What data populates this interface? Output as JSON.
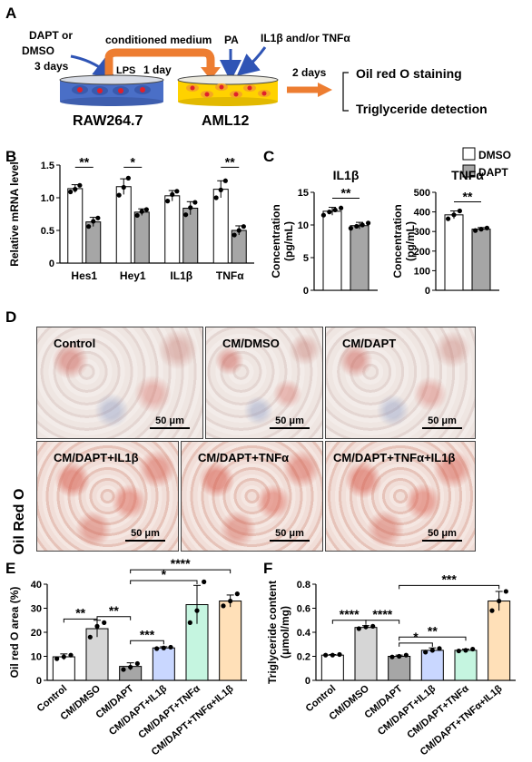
{
  "panels": {
    "A": {
      "label": "A",
      "dapt_text_line1": "DAPT or",
      "dapt_text_line2": "DMSO",
      "dapt_text_line3": "3 days",
      "conditioned_medium": "conditioned medium",
      "pa": "PA",
      "il_text": "IL1β and/or TNFα",
      "lps": "LPS",
      "one_day": "1 day",
      "two_days": "2 days",
      "dish1": "RAW264.7",
      "dish2": "AML12",
      "outcome1": "Oil red O staining",
      "outcome2": "Triglyceride detection",
      "colors": {
        "arrow_orange": "#ed7d31",
        "arrow_blue": "#2f54b5",
        "dish_blue": "#4a6fc7",
        "dish_yellow": "#ffd200",
        "cell_red": "#e0202b"
      }
    },
    "B": {
      "label": "B"
    },
    "C": {
      "label": "C"
    },
    "D": {
      "label": "D",
      "side_label": "Oil Red O",
      "scale": "50 μm",
      "images": [
        "Control",
        "CM/DMSO",
        "CM/DAPT",
        "CM/DAPT+IL1β",
        "CM/DAPT+TNFα",
        "CM/DAPT+TNFα+IL1β"
      ]
    },
    "E": {
      "label": "E"
    },
    "F": {
      "label": "F"
    }
  },
  "legend": {
    "items": [
      "DMSO",
      "DAPT"
    ]
  },
  "chart_data": [
    {
      "id": "B",
      "type": "bar",
      "ylabel": "Relative mRNA level",
      "ylim": [
        0,
        1.5
      ],
      "yticks": [
        "0",
        "0.5",
        "1.0",
        "1.5"
      ],
      "categories": [
        "Hes1",
        "Hey1",
        "IL1β",
        "TNFα"
      ],
      "series": [
        {
          "name": "DMSO",
          "values": [
            1.14,
            1.17,
            1.03,
            1.13
          ],
          "errors": [
            0.06,
            0.12,
            0.08,
            0.13
          ],
          "points": [
            [
              1.09,
              1.13,
              1.19
            ],
            [
              1.04,
              1.16,
              1.3
            ],
            [
              0.95,
              1.05,
              1.1
            ],
            [
              1.0,
              1.12,
              1.26
            ]
          ]
        },
        {
          "name": "DAPT",
          "values": [
            0.63,
            0.78,
            0.84,
            0.5
          ],
          "errors": [
            0.07,
            0.05,
            0.1,
            0.07
          ],
          "points": [
            [
              0.56,
              0.64,
              0.69
            ],
            [
              0.73,
              0.79,
              0.82
            ],
            [
              0.74,
              0.85,
              0.93
            ],
            [
              0.43,
              0.5,
              0.56
            ]
          ]
        }
      ],
      "significance": [
        "**",
        "*",
        "",
        "**"
      ]
    },
    {
      "id": "C1",
      "type": "bar",
      "title": "IL1β",
      "ylabel": "Concentration (pg/mL)",
      "ylim": [
        0,
        15
      ],
      "yticks": [
        "0",
        "5",
        "10",
        "15"
      ],
      "categories": [
        "DMSO",
        "DAPT"
      ],
      "values": [
        12.1,
        9.9
      ],
      "errors": [
        0.6,
        0.5
      ],
      "points": [
        [
          11.5,
          12.0,
          12.3,
          12.6
        ],
        [
          9.5,
          9.8,
          10.0,
          10.3
        ]
      ],
      "significance": "**"
    },
    {
      "id": "C2",
      "type": "bar",
      "title": "TNFα",
      "ylabel": "Concentration (pg/mL)",
      "ylim": [
        0,
        500
      ],
      "yticks": [
        "0",
        "100",
        "200",
        "300",
        "400",
        "500"
      ],
      "categories": [
        "DMSO",
        "DAPT"
      ],
      "values": [
        385,
        312
      ],
      "errors": [
        20,
        8
      ],
      "points": [
        [
          365,
          385,
          405
        ],
        [
          305,
          312,
          318
        ]
      ],
      "significance": "**"
    },
    {
      "id": "E",
      "type": "bar",
      "ylabel": "Oil red O area (%)",
      "ylim": [
        0,
        40
      ],
      "yticks": [
        "0",
        "10",
        "20",
        "30",
        "40"
      ],
      "categories": [
        "Control",
        "CM/DMSO",
        "CM/DAPT",
        "CM/DAPT+IL1β",
        "CM/DAPT+TNFα",
        "CM/DAPT+TNFα+IL1β"
      ],
      "values": [
        9.8,
        21.5,
        5.8,
        13.5,
        31.5,
        33.0
      ],
      "errors": [
        1.2,
        3.5,
        1.5,
        0.5,
        8.0,
        2.5
      ],
      "points": [
        [
          9.0,
          9.8,
          10.5
        ],
        [
          18.0,
          22.5,
          24.0
        ],
        [
          4.5,
          5.5,
          7.0
        ],
        [
          13.2,
          13.5,
          13.8
        ],
        [
          24.0,
          29.0,
          41.0
        ],
        [
          31.0,
          33.0,
          36.0
        ]
      ],
      "colors": [
        "#ffffff",
        "#d6d6d6",
        "#a6a6a6",
        "#c9d7ff",
        "#c5f5e0",
        "#ffe0b8"
      ],
      "brackets": [
        {
          "from": 0,
          "to": 1,
          "label": "**"
        },
        {
          "from": 1,
          "to": 2,
          "label": "**"
        },
        {
          "from": 2,
          "to": 3,
          "label": "***"
        },
        {
          "from": 2,
          "to": 4,
          "label": "*"
        },
        {
          "from": 2,
          "to": 5,
          "label": "****"
        }
      ]
    },
    {
      "id": "F",
      "type": "bar",
      "ylabel": "Triglyceride content (μmol/mg)",
      "ylim": [
        0,
        0.8
      ],
      "yticks": [
        "0",
        "0.2",
        "0.4",
        "0.6",
        "0.8"
      ],
      "categories": [
        "Control",
        "CM/DMSO",
        "CM/DAPT",
        "CM/DAPT+IL1β",
        "CM/DAPT+TNFα",
        "CM/DAPT+TNFα+IL1β"
      ],
      "values": [
        0.21,
        0.44,
        0.2,
        0.25,
        0.25,
        0.66
      ],
      "errors": [
        0.005,
        0.015,
        0.01,
        0.02,
        0.01,
        0.08
      ],
      "points": [
        [
          0.21,
          0.21,
          0.215
        ],
        [
          0.43,
          0.445,
          0.45
        ],
        [
          0.195,
          0.2,
          0.21
        ],
        [
          0.235,
          0.25,
          0.265
        ],
        [
          0.245,
          0.25,
          0.26
        ],
        [
          0.58,
          0.66,
          0.74
        ]
      ],
      "colors": [
        "#ffffff",
        "#d6d6d6",
        "#a6a6a6",
        "#c9d7ff",
        "#c5f5e0",
        "#ffe0b8"
      ],
      "brackets": [
        {
          "from": 0,
          "to": 1,
          "label": "****"
        },
        {
          "from": 1,
          "to": 2,
          "label": "****"
        },
        {
          "from": 2,
          "to": 3,
          "label": "*"
        },
        {
          "from": 2,
          "to": 4,
          "label": "**"
        },
        {
          "from": 2,
          "to": 5,
          "label": "***"
        }
      ]
    }
  ]
}
